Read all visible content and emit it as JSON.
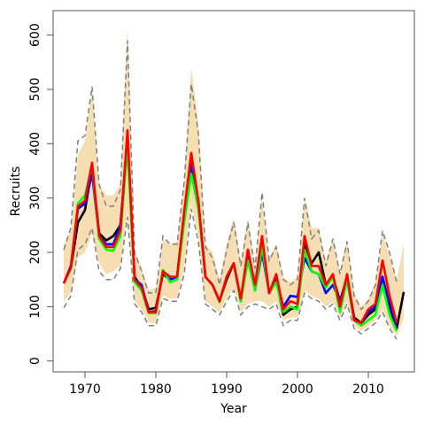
{
  "chart_data": {
    "type": "line",
    "title": "",
    "xlabel": "Year",
    "ylabel": "Recruits",
    "xlim": [
      1965.5,
      2016.5
    ],
    "ylim": [
      -20,
      645
    ],
    "x_ticks": [
      1970,
      1980,
      1990,
      2000,
      2010
    ],
    "y_ticks": [
      0,
      100,
      200,
      300,
      400,
      500,
      600
    ],
    "grid": false,
    "legend": "none",
    "band": {
      "color": "#f6deb2",
      "x": [
        1967,
        1968,
        1969,
        1970,
        1971,
        1972,
        1973,
        1974,
        1975,
        1976,
        1977,
        1978,
        1979,
        1980,
        1981,
        1982,
        1983,
        1984,
        1985,
        1986,
        1987,
        1988,
        1989,
        1990,
        1991,
        1992,
        1993,
        1994,
        1995,
        1996,
        1997,
        1998,
        1999,
        2000,
        2001,
        2002,
        2003,
        2004,
        2005,
        2006,
        2007,
        2008,
        2009,
        2010,
        2011,
        2012,
        2013,
        2014,
        2015
      ],
      "lower": [
        110,
        125,
        190,
        200,
        235,
        180,
        160,
        165,
        175,
        275,
        110,
        95,
        70,
        70,
        120,
        115,
        115,
        170,
        290,
        230,
        110,
        100,
        90,
        115,
        135,
        90,
        105,
        110,
        110,
        100,
        110,
        75,
        80,
        80,
        130,
        120,
        115,
        100,
        110,
        80,
        110,
        65,
        55,
        65,
        75,
        95,
        65,
        45,
        80
      ],
      "upper": [
        215,
        240,
        380,
        405,
        500,
        325,
        305,
        305,
        325,
        615,
        205,
        170,
        130,
        135,
        225,
        215,
        220,
        330,
        540,
        440,
        215,
        200,
        150,
        215,
        265,
        180,
        265,
        175,
        300,
        190,
        215,
        155,
        145,
        155,
        300,
        245,
        245,
        185,
        225,
        165,
        225,
        125,
        100,
        115,
        145,
        235,
        195,
        150,
        215
      ]
    },
    "series": [
      {
        "color": "#000000",
        "x": [
          1967,
          1968,
          1969,
          1970,
          1971,
          1972,
          1973,
          1974,
          1975,
          1976,
          1977,
          1978,
          1979,
          1980,
          1981,
          1982,
          1983,
          1984,
          1985,
          1986,
          1987,
          1988,
          1989,
          1990,
          1991,
          1992,
          1993,
          1994,
          1995,
          1996,
          1997,
          1998,
          1999,
          2000,
          2001,
          2002,
          2003,
          2004,
          2005,
          2006,
          2007,
          2008,
          2009,
          2010,
          2011,
          2012,
          2013,
          2014,
          2015
        ],
        "y": [
          143,
          170,
          255,
          278,
          355,
          235,
          222,
          230,
          250,
          400,
          155,
          135,
          95,
          98,
          160,
          150,
          155,
          270,
          365,
          295,
          155,
          140,
          110,
          150,
          180,
          110,
          205,
          135,
          210,
          125,
          150,
          85,
          95,
          100,
          215,
          180,
          200,
          140,
          155,
          110,
          155,
          80,
          70,
          85,
          95,
          155,
          100,
          60,
          127
        ]
      },
      {
        "color": "#0000ff",
        "x": [
          1967,
          1968,
          1969,
          1970,
          1971,
          1972,
          1973,
          1974,
          1975,
          1976,
          1977,
          1978,
          1979,
          1980,
          1981,
          1982,
          1983,
          1984,
          1985,
          1986,
          1987,
          1988,
          1989,
          1990,
          1991,
          1992,
          1993,
          1994,
          1995,
          1996,
          1997,
          1998,
          1999,
          2000,
          2001,
          2002,
          2003,
          2004,
          2005,
          2006,
          2007,
          2008,
          2009,
          2010,
          2011,
          2012,
          2013,
          2014
        ],
        "y": [
          143,
          175,
          280,
          290,
          345,
          230,
          215,
          215,
          250,
          410,
          150,
          140,
          90,
          92,
          165,
          150,
          155,
          270,
          360,
          290,
          155,
          140,
          110,
          155,
          180,
          110,
          195,
          130,
          200,
          125,
          150,
          100,
          120,
          118,
          190,
          165,
          160,
          125,
          140,
          110,
          150,
          75,
          68,
          90,
          100,
          155,
          105,
          62
        ]
      },
      {
        "color": "#00ff00",
        "x": [
          1967,
          1968,
          1969,
          1970,
          1971,
          1972,
          1973,
          1974,
          1975,
          1976,
          1977,
          1978,
          1979,
          1980,
          1981,
          1982,
          1983,
          1984,
          1985,
          1986,
          1987,
          1988,
          1989,
          1990,
          1991,
          1992,
          1993,
          1994,
          1995,
          1996,
          1997,
          1998,
          1999,
          2000,
          2001,
          2002,
          2003,
          2004,
          2005,
          2006,
          2007,
          2008,
          2009,
          2010,
          2011,
          2012,
          2013,
          2014
        ],
        "y": [
          143,
          170,
          290,
          305,
          360,
          225,
          205,
          203,
          230,
          395,
          145,
          130,
          88,
          88,
          168,
          145,
          150,
          255,
          345,
          280,
          155,
          140,
          108,
          155,
          180,
          110,
          185,
          130,
          210,
          125,
          145,
          90,
          100,
          95,
          205,
          165,
          160,
          135,
          155,
          90,
          150,
          75,
          65,
          75,
          85,
          140,
          85,
          55
        ]
      },
      {
        "color": "#ff0000",
        "x": [
          1967,
          1968,
          1969,
          1970,
          1971,
          1972,
          1973,
          1974,
          1975,
          1976,
          1977,
          1978,
          1979,
          1980,
          1981,
          1982,
          1983,
          1984,
          1985,
          1986,
          1987,
          1988,
          1989,
          1990,
          1991,
          1992,
          1993,
          1994,
          1995,
          1996,
          1997,
          1998,
          1999,
          2000,
          2001,
          2002,
          2003,
          2004,
          2005,
          2006,
          2007,
          2008,
          2009,
          2010,
          2011,
          2012,
          2013,
          2014
        ],
        "y": [
          143,
          172,
          285,
          295,
          365,
          230,
          210,
          210,
          240,
          425,
          150,
          135,
          90,
          90,
          165,
          155,
          155,
          275,
          383,
          295,
          155,
          140,
          110,
          155,
          180,
          115,
          205,
          140,
          230,
          125,
          160,
          95,
          110,
          105,
          230,
          175,
          175,
          140,
          160,
          100,
          160,
          75,
          70,
          95,
          105,
          185,
          120,
          70
        ]
      }
    ],
    "interval_lines": {
      "color": "#808080",
      "x": [
        1967,
        1968,
        1969,
        1970,
        1971,
        1972,
        1973,
        1974,
        1975,
        1976,
        1977,
        1978,
        1979,
        1980,
        1981,
        1982,
        1983,
        1984,
        1985,
        1986,
        1987,
        1988,
        1989,
        1990,
        1991,
        1992,
        1993,
        1994,
        1995,
        1996,
        1997,
        1998,
        1999,
        2000,
        2001,
        2002,
        2003,
        2004,
        2005,
        2006,
        2007,
        2008,
        2009,
        2010,
        2011,
        2012,
        2013,
        2014
      ],
      "lower": [
        98,
        120,
        205,
        215,
        245,
        165,
        150,
        150,
        170,
        265,
        105,
        90,
        65,
        65,
        115,
        110,
        110,
        160,
        280,
        220,
        105,
        95,
        85,
        110,
        130,
        85,
        100,
        105,
        100,
        95,
        105,
        65,
        75,
        75,
        125,
        115,
        110,
        95,
        105,
        75,
        105,
        60,
        50,
        60,
        70,
        90,
        60,
        40
      ],
      "upper": [
        205,
        245,
        405,
        415,
        505,
        325,
        285,
        285,
        315,
        590,
        200,
        165,
        125,
        125,
        230,
        215,
        215,
        330,
        510,
        420,
        210,
        190,
        140,
        205,
        255,
        175,
        255,
        170,
        310,
        185,
        210,
        150,
        140,
        150,
        300,
        225,
        240,
        175,
        225,
        160,
        220,
        120,
        95,
        110,
        140,
        240,
        200,
        145
      ]
    }
  }
}
